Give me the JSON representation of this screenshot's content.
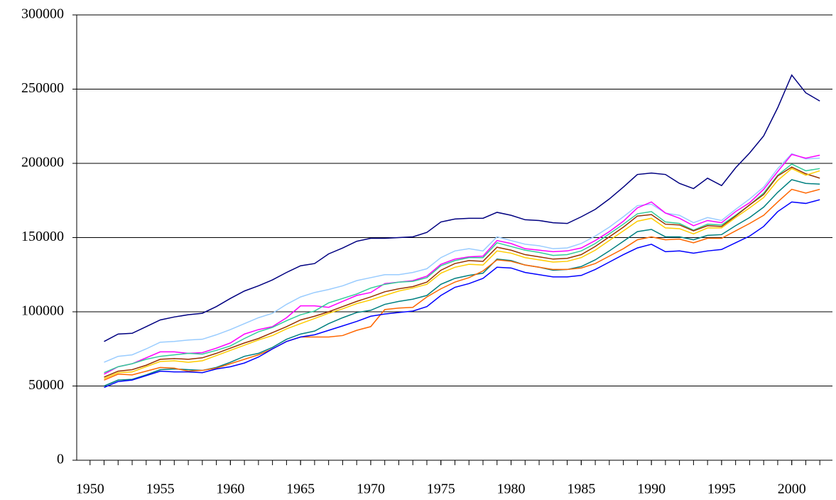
{
  "chart_data": {
    "type": "line",
    "x": [
      1951,
      1952,
      1953,
      1954,
      1955,
      1956,
      1957,
      1958,
      1959,
      1960,
      1961,
      1962,
      1963,
      1964,
      1965,
      1966,
      1967,
      1968,
      1969,
      1970,
      1971,
      1972,
      1973,
      1974,
      1975,
      1976,
      1977,
      1978,
      1979,
      1980,
      1981,
      1982,
      1983,
      1984,
      1985,
      1986,
      1987,
      1988,
      1989,
      1990,
      1991,
      1992,
      1993,
      1994,
      1995,
      1996,
      1997,
      1998,
      1999,
      2000,
      2001,
      2002
    ],
    "xlim": [
      1949.05,
      2002.9
    ],
    "xticks": [
      1950,
      1955,
      1960,
      1965,
      1970,
      1975,
      1980,
      1985,
      1990,
      1995,
      2000
    ],
    "ylim": [
      0,
      300000
    ],
    "yticks": [
      0,
      50000,
      100000,
      150000,
      200000,
      250000,
      300000
    ],
    "grid": true,
    "series": [
      {
        "color": "#000080",
        "values": [
          80000,
          85000,
          85500,
          90000,
          94500,
          96500,
          98000,
          99000,
          103500,
          109000,
          114000,
          117500,
          121500,
          126500,
          131000,
          132500,
          139000,
          143000,
          147500,
          149500,
          149500,
          150000,
          150500,
          153500,
          160500,
          162500,
          163000,
          163000,
          167000,
          165000,
          162000,
          161500,
          160000,
          159500,
          164000,
          169000,
          176000,
          184000,
          192500,
          193500,
          192500,
          186500,
          183000,
          190000,
          185000,
          197000,
          207000,
          218500,
          237500,
          259500,
          247500,
          242000
        ]
      },
      {
        "color": "#99ccff",
        "values": [
          66000,
          70000,
          71000,
          75000,
          79500,
          80000,
          81000,
          81500,
          84500,
          88000,
          92000,
          96000,
          99000,
          105000,
          110000,
          113000,
          115000,
          117500,
          121000,
          123000,
          125000,
          125000,
          126500,
          129000,
          136500,
          141000,
          142500,
          141000,
          150500,
          148000,
          145500,
          144500,
          142500,
          143000,
          146000,
          151000,
          157000,
          164000,
          171500,
          172500,
          166500,
          165000,
          160000,
          163500,
          161500,
          169000,
          176000,
          184000,
          196500,
          206500,
          203000,
          203500
        ]
      },
      {
        "color": "#ff00ff",
        "values": [
          58000,
          63000,
          65000,
          69000,
          73000,
          73000,
          72000,
          72500,
          75500,
          79000,
          85000,
          88000,
          90000,
          96000,
          104000,
          104000,
          103000,
          107000,
          111000,
          113000,
          119000,
          120000,
          121000,
          124000,
          132000,
          135500,
          137000,
          137500,
          148000,
          146000,
          142500,
          141500,
          140500,
          141000,
          143000,
          148000,
          154000,
          161000,
          170000,
          174000,
          166500,
          163000,
          158000,
          161500,
          160000,
          167500,
          173500,
          182500,
          194500,
          206000,
          203500,
          205500
        ]
      },
      {
        "color": "#33cc99",
        "values": [
          59000,
          63000,
          65000,
          68000,
          70000,
          71000,
          72000,
          71500,
          74000,
          77000,
          82000,
          86500,
          89500,
          94000,
          98000,
          100500,
          106000,
          109000,
          112000,
          116000,
          118500,
          120000,
          120500,
          123000,
          131000,
          134500,
          136500,
          136500,
          146500,
          144000,
          141500,
          140000,
          138000,
          138500,
          141000,
          146000,
          152500,
          159000,
          166000,
          167500,
          160500,
          159500,
          155000,
          159000,
          158500,
          165000,
          172000,
          180000,
          192000,
          199500,
          195000,
          196500
        ]
      },
      {
        "color": "#993300",
        "values": [
          56000,
          60000,
          61000,
          64000,
          68000,
          68500,
          68000,
          69000,
          72000,
          75500,
          79000,
          82000,
          86000,
          90000,
          94500,
          97000,
          100000,
          103500,
          107000,
          110000,
          113500,
          115500,
          117000,
          120000,
          128000,
          132500,
          134500,
          134000,
          143500,
          141500,
          138500,
          137000,
          135500,
          136000,
          138500,
          144000,
          150500,
          157000,
          164500,
          165500,
          159000,
          158500,
          154500,
          158000,
          157500,
          164500,
          172000,
          179000,
          191500,
          197500,
          193000,
          190000
        ]
      },
      {
        "color": "#ffcc00",
        "values": [
          55000,
          59000,
          59500,
          63000,
          66500,
          67000,
          66000,
          67000,
          70500,
          74000,
          77500,
          81000,
          84000,
          88500,
          92000,
          95500,
          99000,
          102000,
          105500,
          108000,
          111000,
          114000,
          116000,
          118500,
          126000,
          130000,
          132000,
          131500,
          141000,
          139500,
          136500,
          135000,
          133500,
          134000,
          136500,
          141500,
          148000,
          154500,
          161000,
          163000,
          156500,
          156000,
          152500,
          156500,
          156500,
          163500,
          170000,
          177000,
          188500,
          196500,
          192000,
          195000
        ]
      },
      {
        "color": "#008080",
        "values": [
          50000,
          54000,
          54500,
          57500,
          61000,
          61500,
          61000,
          60500,
          62500,
          66000,
          70000,
          72000,
          76000,
          81500,
          85000,
          87000,
          92000,
          96000,
          99500,
          101000,
          105000,
          107000,
          108500,
          111000,
          118500,
          122500,
          124500,
          126000,
          135500,
          134500,
          131500,
          130000,
          128000,
          128500,
          130500,
          135000,
          141000,
          147500,
          154000,
          155500,
          150500,
          150500,
          148500,
          151500,
          152000,
          158000,
          163500,
          170500,
          180500,
          189000,
          186500,
          186000
        ]
      },
      {
        "color": "#ff6600",
        "values": [
          54000,
          58000,
          57500,
          60000,
          62500,
          62000,
          60000,
          60500,
          62000,
          65000,
          68000,
          71000,
          75000,
          80000,
          83000,
          83000,
          83000,
          84000,
          87500,
          90000,
          101500,
          102500,
          103000,
          110000,
          115500,
          120000,
          123000,
          127500,
          135000,
          134000,
          131500,
          130000,
          128500,
          128500,
          129500,
          132500,
          137500,
          142500,
          148500,
          150500,
          148500,
          149000,
          146500,
          149500,
          149500,
          154500,
          159500,
          165000,
          174000,
          182500,
          180000,
          182500
        ]
      },
      {
        "color": "#0000ff",
        "values": [
          49000,
          53000,
          54000,
          57000,
          60000,
          59500,
          59500,
          59000,
          61500,
          63000,
          65500,
          69500,
          75000,
          80000,
          83000,
          84500,
          87500,
          90500,
          93500,
          97000,
          98500,
          99500,
          100500,
          103500,
          111000,
          116500,
          119000,
          122500,
          130000,
          129500,
          126500,
          125000,
          123500,
          123500,
          124500,
          128500,
          133500,
          138500,
          143000,
          145500,
          140500,
          141000,
          139500,
          141000,
          142000,
          146500,
          151000,
          157500,
          167500,
          174000,
          173000,
          175500
        ]
      }
    ]
  }
}
